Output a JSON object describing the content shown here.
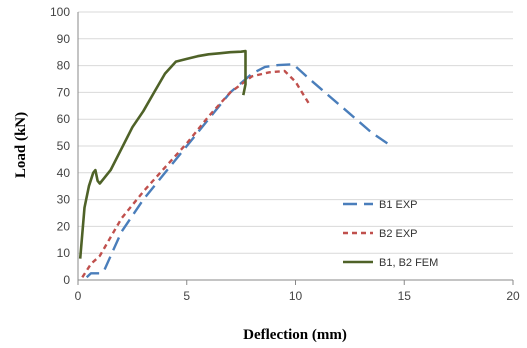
{
  "chart_data": {
    "type": "line",
    "title": "",
    "xlabel": "Deflection (mm)",
    "ylabel": "Load (kN)",
    "xlim": [
      0,
      20
    ],
    "ylim": [
      0,
      100
    ],
    "xticks": [
      0,
      5,
      10,
      15,
      20
    ],
    "yticks": [
      0,
      10,
      20,
      30,
      40,
      50,
      60,
      70,
      80,
      90,
      100
    ],
    "grid": "horizontal",
    "legend_position": "bottom-right",
    "series": [
      {
        "name": "B1 EXP",
        "color": "#4a7ebb",
        "style": "long-dash",
        "x": [
          0.4,
          0.6,
          1.0,
          1.2,
          2.0,
          3.0,
          4.0,
          5.0,
          6.0,
          7.0,
          8.0,
          8.6,
          9.2,
          9.9,
          10.5,
          11.5,
          12.5,
          13.5,
          14.4
        ],
        "y": [
          1,
          2.5,
          2.5,
          3.5,
          18,
          30,
          40,
          50,
          60,
          70,
          77,
          79.5,
          80.2,
          80.5,
          76,
          69,
          62,
          55,
          50
        ]
      },
      {
        "name": "B2 EXP",
        "color": "#c0504d",
        "style": "short-dash",
        "x": [
          0.2,
          0.6,
          1.0,
          2.0,
          3.0,
          4.0,
          5.0,
          6.0,
          7.0,
          8.0,
          8.8,
          9.5,
          10.0,
          10.3,
          10.6
        ],
        "y": [
          1,
          6,
          9,
          23,
          33,
          42,
          51,
          61,
          70,
          76,
          77.5,
          78,
          74,
          70,
          66
        ]
      },
      {
        "name": "B1, B2 FEM",
        "color": "#4f6228",
        "style": "solid",
        "x": [
          0.1,
          0.3,
          0.5,
          0.7,
          0.8,
          0.9,
          1.0,
          1.2,
          1.5,
          2.0,
          2.5,
          3.0,
          3.5,
          4.0,
          4.5,
          5.0,
          5.5,
          6.0,
          6.5,
          7.0,
          7.5,
          7.7,
          7.7,
          7.6
        ],
        "y": [
          8,
          27,
          35,
          40,
          41,
          37,
          36,
          38,
          41,
          49,
          57,
          63,
          70,
          77,
          81.5,
          82.5,
          83.5,
          84.2,
          84.6,
          85,
          85.2,
          85.4,
          73,
          69
        ]
      }
    ]
  }
}
